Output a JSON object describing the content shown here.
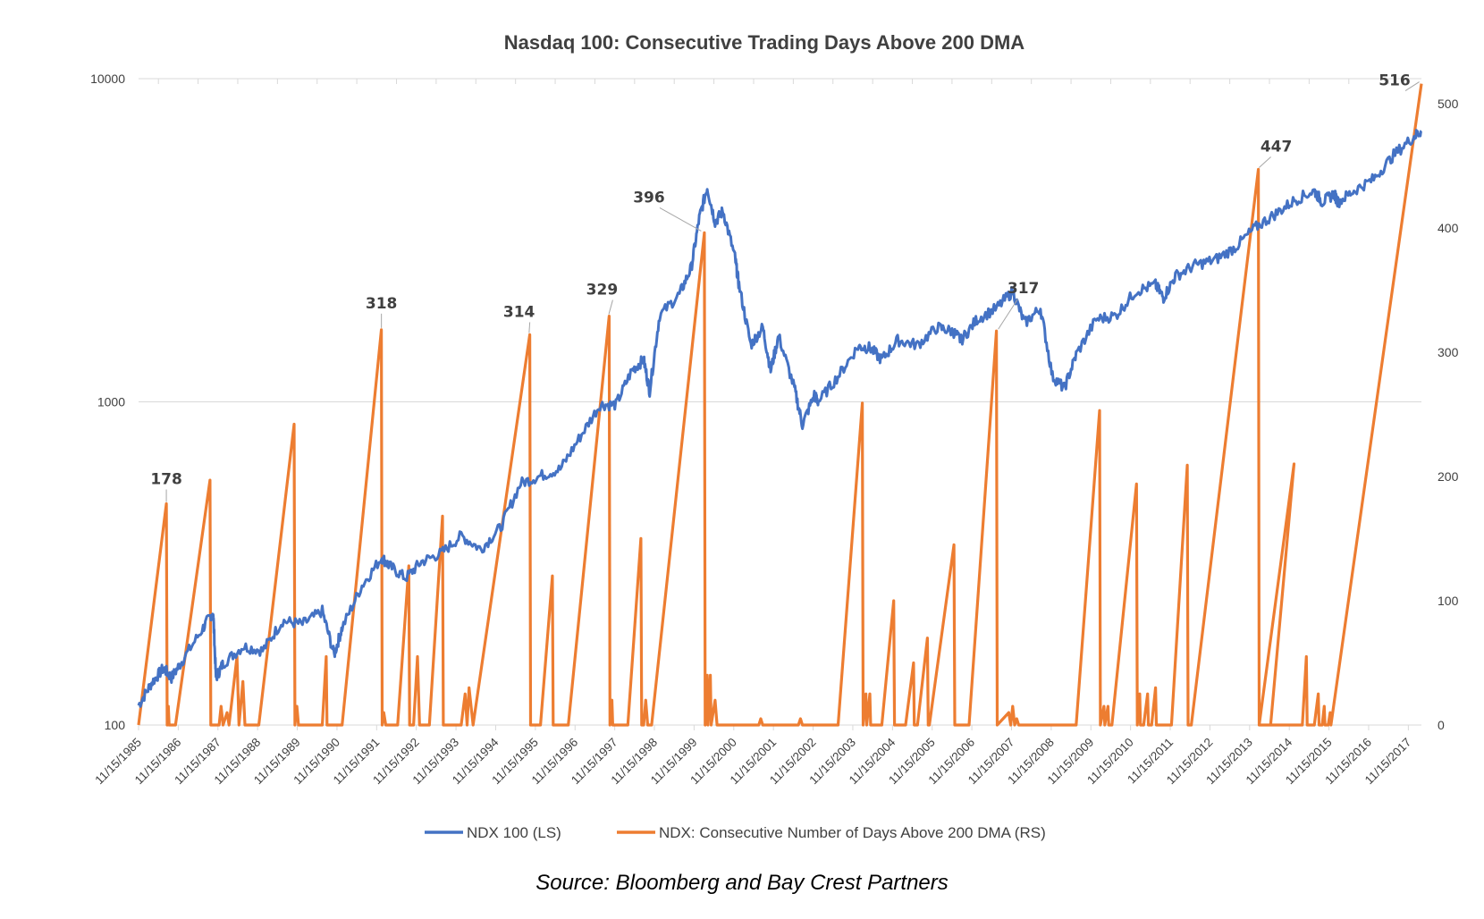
{
  "chart_data": {
    "type": "line",
    "title": "Nasdaq 100: Consecutive Trading Days Above 200 DMA",
    "source": "Source: Bloomberg and Bay Crest Partners",
    "x_tick_labels": [
      "11/15/1985",
      "11/15/1986",
      "11/15/1987",
      "11/15/1988",
      "11/15/1989",
      "11/15/1990",
      "11/15/1991",
      "11/15/1992",
      "11/15/1993",
      "11/15/1994",
      "11/15/1995",
      "11/15/1996",
      "11/15/1997",
      "11/15/1998",
      "11/15/1999",
      "11/15/2000",
      "11/15/2001",
      "11/15/2002",
      "11/15/2003",
      "11/15/2004",
      "11/15/2005",
      "11/15/2006",
      "11/15/2007",
      "11/15/2008",
      "11/15/2009",
      "11/15/2010",
      "11/15/2011",
      "11/15/2012",
      "11/15/2013",
      "11/15/2014",
      "11/15/2015",
      "11/15/2016",
      "11/15/2017"
    ],
    "x_range": [
      1985.87,
      2018.2
    ],
    "y_left": {
      "scale": "log",
      "range": [
        100,
        10000
      ],
      "tick_labels": [
        "100",
        "1000",
        "10000"
      ],
      "tick_values": [
        100,
        1000,
        10000
      ]
    },
    "y_right": {
      "scale": "linear",
      "range": [
        0,
        520
      ],
      "tick_labels": [
        "0",
        "100",
        "200",
        "300",
        "400",
        "500"
      ],
      "tick_values": [
        0,
        100,
        200,
        300,
        400,
        500
      ]
    },
    "grid": "horizontal-left-axis",
    "legend_position": "bottom",
    "colors": {
      "ndx": "#4472C4",
      "days": "#ED7D31",
      "grid": "#d9d9d9",
      "axis": "#d9d9d9",
      "text": "#404040"
    },
    "series": [
      {
        "name": "NDX 100 (LS)",
        "axis": "left",
        "points": [
          [
            1985.87,
            115
          ],
          [
            1986.2,
            135
          ],
          [
            1986.5,
            150
          ],
          [
            1986.7,
            140
          ],
          [
            1987.0,
            160
          ],
          [
            1987.5,
            200
          ],
          [
            1987.75,
            225
          ],
          [
            1987.82,
            140
          ],
          [
            1988.0,
            155
          ],
          [
            1988.5,
            175
          ],
          [
            1989.0,
            170
          ],
          [
            1989.5,
            210
          ],
          [
            1990.0,
            205
          ],
          [
            1990.5,
            225
          ],
          [
            1990.8,
            165
          ],
          [
            1991.0,
            200
          ],
          [
            1991.5,
            270
          ],
          [
            1992.0,
            330
          ],
          [
            1992.2,
            310
          ],
          [
            1992.6,
            285
          ],
          [
            1993.0,
            320
          ],
          [
            1993.5,
            340
          ],
          [
            1994.0,
            385
          ],
          [
            1994.5,
            350
          ],
          [
            1995.0,
            410
          ],
          [
            1995.5,
            560
          ],
          [
            1996.0,
            590
          ],
          [
            1996.5,
            620
          ],
          [
            1997.0,
            780
          ],
          [
            1997.5,
            980
          ],
          [
            1997.9,
            980
          ],
          [
            1998.3,
            1250
          ],
          [
            1998.6,
            1350
          ],
          [
            1998.75,
            1080
          ],
          [
            1999.0,
            1850
          ],
          [
            1999.5,
            2150
          ],
          [
            1999.8,
            2600
          ],
          [
            2000.0,
            3700
          ],
          [
            2000.2,
            4600
          ],
          [
            2000.4,
            3600
          ],
          [
            2000.6,
            3900
          ],
          [
            2000.9,
            2800
          ],
          [
            2001.0,
            2300
          ],
          [
            2001.3,
            1500
          ],
          [
            2001.6,
            1700
          ],
          [
            2001.8,
            1250
          ],
          [
            2002.0,
            1600
          ],
          [
            2002.4,
            1100
          ],
          [
            2002.6,
            850
          ],
          [
            2002.9,
            1050
          ],
          [
            2003.0,
            1000
          ],
          [
            2003.5,
            1200
          ],
          [
            2004.0,
            1480
          ],
          [
            2004.3,
            1470
          ],
          [
            2004.6,
            1350
          ],
          [
            2005.0,
            1550
          ],
          [
            2005.5,
            1500
          ],
          [
            2006.0,
            1700
          ],
          [
            2006.4,
            1650
          ],
          [
            2006.6,
            1550
          ],
          [
            2007.0,
            1800
          ],
          [
            2007.5,
            1950
          ],
          [
            2007.9,
            2200
          ],
          [
            2008.2,
            1750
          ],
          [
            2008.6,
            1950
          ],
          [
            2008.9,
            1200
          ],
          [
            2009.2,
            1100
          ],
          [
            2009.5,
            1400
          ],
          [
            2010.0,
            1800
          ],
          [
            2010.5,
            1850
          ],
          [
            2011.0,
            2200
          ],
          [
            2011.5,
            2300
          ],
          [
            2011.7,
            2100
          ],
          [
            2012.0,
            2450
          ],
          [
            2012.5,
            2650
          ],
          [
            2013.0,
            2750
          ],
          [
            2013.5,
            3000
          ],
          [
            2014.0,
            3450
          ],
          [
            2014.5,
            3800
          ],
          [
            2015.0,
            4200
          ],
          [
            2015.5,
            4500
          ],
          [
            2015.7,
            4150
          ],
          [
            2016.0,
            4400
          ],
          [
            2016.1,
            4150
          ],
          [
            2016.5,
            4500
          ],
          [
            2017.0,
            4900
          ],
          [
            2017.5,
            5800
          ],
          [
            2018.0,
            6600
          ],
          [
            2018.2,
            6900
          ]
        ]
      },
      {
        "name": "NDX: Consecutive Number of Days Above 200 DMA (RS)",
        "axis": "right",
        "points": [
          [
            1985.87,
            0
          ],
          [
            1986.57,
            178
          ],
          [
            1986.59,
            0
          ],
          [
            1986.62,
            15
          ],
          [
            1986.64,
            0
          ],
          [
            1986.8,
            0
          ],
          [
            1987.67,
            197
          ],
          [
            1987.69,
            0
          ],
          [
            1987.9,
            0
          ],
          [
            1987.95,
            15
          ],
          [
            1988.0,
            0
          ],
          [
            1988.1,
            10
          ],
          [
            1988.15,
            0
          ],
          [
            1988.35,
            55
          ],
          [
            1988.4,
            0
          ],
          [
            1988.5,
            35
          ],
          [
            1988.55,
            0
          ],
          [
            1988.9,
            0
          ],
          [
            1989.79,
            242
          ],
          [
            1989.81,
            0
          ],
          [
            1989.86,
            15
          ],
          [
            1989.9,
            0
          ],
          [
            1990.5,
            0
          ],
          [
            1990.6,
            55
          ],
          [
            1990.62,
            0
          ],
          [
            1991.0,
            0
          ],
          [
            1991.99,
            318
          ],
          [
            1992.01,
            0
          ],
          [
            1992.05,
            10
          ],
          [
            1992.1,
            0
          ],
          [
            1992.4,
            0
          ],
          [
            1992.68,
            128
          ],
          [
            1992.7,
            0
          ],
          [
            1992.8,
            0
          ],
          [
            1992.9,
            55
          ],
          [
            1992.95,
            0
          ],
          [
            1993.2,
            0
          ],
          [
            1993.53,
            168
          ],
          [
            1993.55,
            0
          ],
          [
            1994.0,
            0
          ],
          [
            1994.1,
            25
          ],
          [
            1994.15,
            0
          ],
          [
            1994.2,
            30
          ],
          [
            1994.3,
            0
          ],
          [
            1995.73,
            314
          ],
          [
            1995.75,
            0
          ],
          [
            1996.0,
            0
          ],
          [
            1996.3,
            120
          ],
          [
            1996.32,
            0
          ],
          [
            1996.7,
            0
          ],
          [
            1997.73,
            329
          ],
          [
            1997.75,
            0
          ],
          [
            1997.8,
            20
          ],
          [
            1997.82,
            0
          ],
          [
            1998.2,
            0
          ],
          [
            1998.53,
            150
          ],
          [
            1998.55,
            0
          ],
          [
            1998.6,
            0
          ],
          [
            1998.65,
            20
          ],
          [
            1998.7,
            0
          ],
          [
            1998.8,
            0
          ],
          [
            2000.13,
            396
          ],
          [
            2000.15,
            0
          ],
          [
            2000.2,
            40
          ],
          [
            2000.22,
            0
          ],
          [
            2000.28,
            40
          ],
          [
            2000.3,
            0
          ],
          [
            2000.4,
            20
          ],
          [
            2000.45,
            0
          ],
          [
            2001.5,
            0
          ],
          [
            2001.55,
            5
          ],
          [
            2001.6,
            0
          ],
          [
            2002.5,
            0
          ],
          [
            2002.55,
            5
          ],
          [
            2002.6,
            0
          ],
          [
            2003.5,
            0
          ],
          [
            2004.11,
            259
          ],
          [
            2004.13,
            0
          ],
          [
            2004.2,
            25
          ],
          [
            2004.22,
            0
          ],
          [
            2004.3,
            25
          ],
          [
            2004.32,
            0
          ],
          [
            2004.6,
            0
          ],
          [
            2004.9,
            100
          ],
          [
            2004.92,
            0
          ],
          [
            2005.2,
            0
          ],
          [
            2005.4,
            50
          ],
          [
            2005.42,
            0
          ],
          [
            2005.5,
            0
          ],
          [
            2005.75,
            70
          ],
          [
            2005.77,
            0
          ],
          [
            2005.8,
            0
          ],
          [
            2006.42,
            145
          ],
          [
            2006.44,
            0
          ],
          [
            2006.8,
            0
          ],
          [
            2007.49,
            317
          ],
          [
            2007.51,
            0
          ],
          [
            2007.8,
            10
          ],
          [
            2007.85,
            0
          ],
          [
            2007.9,
            15
          ],
          [
            2007.95,
            0
          ],
          [
            2008.0,
            5
          ],
          [
            2008.05,
            0
          ],
          [
            2009.5,
            0
          ],
          [
            2009.5,
            0
          ],
          [
            2010.09,
            253
          ],
          [
            2010.11,
            0
          ],
          [
            2010.2,
            15
          ],
          [
            2010.22,
            0
          ],
          [
            2010.3,
            15
          ],
          [
            2010.32,
            0
          ],
          [
            2010.4,
            0
          ],
          [
            2011.02,
            194
          ],
          [
            2011.04,
            0
          ],
          [
            2011.1,
            25
          ],
          [
            2011.12,
            0
          ],
          [
            2011.2,
            0
          ],
          [
            2011.3,
            25
          ],
          [
            2011.32,
            0
          ],
          [
            2011.4,
            0
          ],
          [
            2011.5,
            30
          ],
          [
            2011.52,
            0
          ],
          [
            2011.9,
            0
          ],
          [
            2012.3,
            209
          ],
          [
            2012.32,
            0
          ],
          [
            2012.4,
            0
          ],
          [
            2014.09,
            447
          ],
          [
            2014.11,
            0
          ],
          [
            2014.4,
            0
          ],
          [
            2014.99,
            210
          ],
          [
            2014.11,
            0
          ],
          [
            2015.01,
            0
          ],
          [
            2015.2,
            0
          ],
          [
            2015.3,
            55
          ],
          [
            2015.32,
            0
          ],
          [
            2015.5,
            0
          ],
          [
            2015.6,
            25
          ],
          [
            2015.62,
            0
          ],
          [
            2015.7,
            0
          ],
          [
            2015.75,
            15
          ],
          [
            2015.77,
            0
          ],
          [
            2015.85,
            0
          ],
          [
            2015.9,
            10
          ],
          [
            2015.92,
            0
          ],
          [
            2018.2,
            516
          ]
        ]
      }
    ],
    "annotations": [
      {
        "text": "178",
        "x": 1986.57,
        "y": 178
      },
      {
        "text": "318",
        "x": 1991.99,
        "y": 318
      },
      {
        "text": "314",
        "x": 1995.73,
        "y": 314
      },
      {
        "text": "329",
        "x": 1997.73,
        "y": 329
      },
      {
        "text": "396",
        "x": 2000.13,
        "y": 396
      },
      {
        "text": "317",
        "x": 2007.49,
        "y": 317
      },
      {
        "text": "447",
        "x": 2014.09,
        "y": 447
      },
      {
        "text": "516",
        "x": 2018.2,
        "y": 516
      }
    ]
  }
}
